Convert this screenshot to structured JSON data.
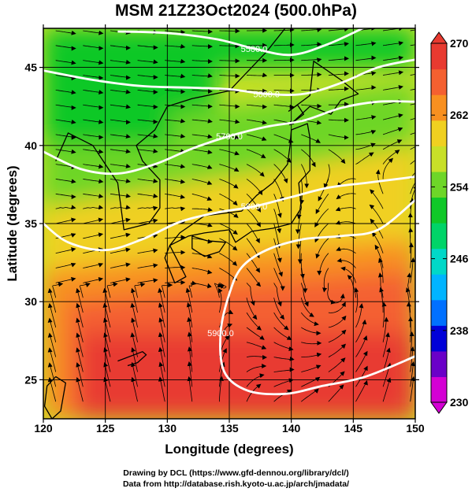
{
  "title": "MSM 21Z23Oct2024 (500.0hPa)",
  "chart_data": {
    "type": "heatmap",
    "title": "MSM 21Z23Oct2024 (500.0hPa)",
    "xlabel": "Longitude (degrees)",
    "ylabel": "Latitude  (degrees)",
    "xlim": [
      120,
      150
    ],
    "ylim": [
      22.5,
      47.5
    ],
    "x_ticks": [
      "120",
      "125",
      "130",
      "135",
      "140",
      "145",
      "150"
    ],
    "y_ticks": [
      "25",
      "30",
      "35",
      "40",
      "45"
    ],
    "grid": true,
    "colorbar": {
      "min": 230,
      "max": 270,
      "ticks": [
        "230",
        "238",
        "246",
        "254",
        "262",
        "270"
      ],
      "colors": [
        "#d400d4",
        "#6a00c8",
        "#0000d8",
        "#0070ff",
        "#00b4ff",
        "#00d8c8",
        "#00d468",
        "#10c828",
        "#6ed628",
        "#c8e028",
        "#f0d020",
        "#f89020",
        "#f46030",
        "#e83a30"
      ]
    },
    "contours": [
      {
        "label": "5500.0",
        "points": [
          [
            126,
            47.3
          ],
          [
            130,
            47.2
          ],
          [
            134,
            46.8
          ],
          [
            137,
            46.2
          ],
          [
            140,
            45.8
          ],
          [
            143,
            46.5
          ],
          [
            146,
            47.6
          ]
        ]
      },
      {
        "label": "5600.0",
        "points": [
          [
            120,
            44.8
          ],
          [
            124,
            44.2
          ],
          [
            128,
            43.8
          ],
          [
            132,
            43.7
          ],
          [
            135,
            43.6
          ],
          [
            138,
            43.3
          ],
          [
            141,
            43.3
          ],
          [
            144,
            44.0
          ],
          [
            147,
            45.0
          ],
          [
            150,
            45.5
          ]
        ]
      },
      {
        "label": "5700.0",
        "points": [
          [
            120,
            39.6
          ],
          [
            123,
            38.5
          ],
          [
            126,
            38.2
          ],
          [
            129,
            38.8
          ],
          [
            132,
            39.8
          ],
          [
            135,
            40.6
          ],
          [
            138,
            41.2
          ],
          [
            141,
            41.6
          ],
          [
            144,
            42.4
          ],
          [
            147,
            42.8
          ],
          [
            150,
            42.8
          ]
        ]
      },
      {
        "label": "5800.0",
        "points": [
          [
            120,
            35.0
          ],
          [
            122,
            33.8
          ],
          [
            125,
            33.3
          ],
          [
            128,
            34.0
          ],
          [
            131,
            35.1
          ],
          [
            134,
            35.7
          ],
          [
            137,
            36.1
          ],
          [
            140,
            36.7
          ],
          [
            143,
            37.3
          ],
          [
            146,
            37.6
          ],
          [
            149,
            37.9
          ],
          [
            150,
            38.0
          ]
        ]
      },
      {
        "label": "5900.0",
        "points": [
          [
            150,
            36.5
          ],
          [
            147,
            34.6
          ],
          [
            144,
            34.2
          ],
          [
            141,
            34.0
          ],
          [
            138,
            33.3
          ],
          [
            136,
            32.2
          ],
          [
            135,
            30.5
          ],
          [
            134.3,
            28.0
          ],
          [
            134.6,
            25.5
          ],
          [
            136.5,
            24.3
          ],
          [
            139.5,
            24.1
          ],
          [
            142.5,
            24.6
          ],
          [
            146,
            25.2
          ],
          [
            150,
            26.5
          ]
        ]
      }
    ],
    "low_center": {
      "lon": 143.8,
      "lat": 30.5
    }
  },
  "footer": {
    "line1": "Drawing by DCL (https://www.gfd-dennou.org/library/dcl/)",
    "line2": "Data from http://database.rish.kyoto-u.ac.jp/arch/jmadata/"
  }
}
